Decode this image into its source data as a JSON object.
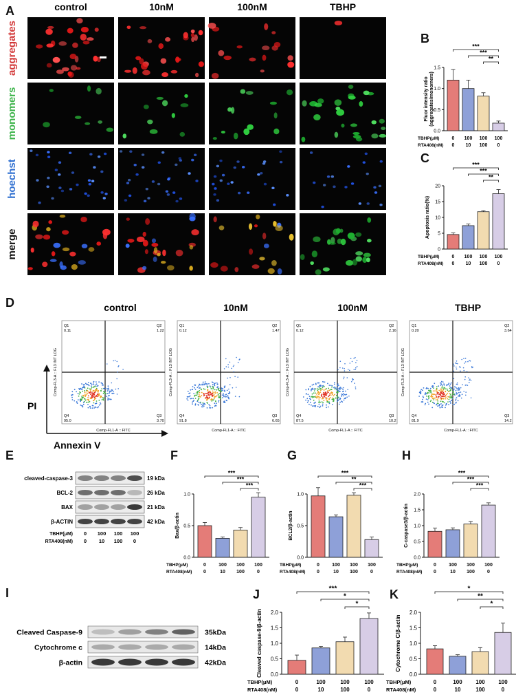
{
  "panel_letters": [
    "A",
    "B",
    "C",
    "D",
    "E",
    "F",
    "G",
    "H",
    "I",
    "J",
    "K"
  ],
  "micro": {
    "columns": [
      "control",
      "10nM",
      "100nM",
      "TBHP"
    ],
    "rows": [
      {
        "label": "aggregates",
        "color": "#d33a3a"
      },
      {
        "label": "monomers",
        "color": "#3cb34a"
      },
      {
        "label": "hoechst",
        "color": "#2f6fd0"
      },
      {
        "label": "merge",
        "color": "#111111"
      }
    ]
  },
  "flow": {
    "columns": [
      {
        "title": "control",
        "q1_label": "Q1",
        "q1": "0.11",
        "q2_label": "Q2",
        "q2": "1.22",
        "q3_label": "Q3",
        "q3": "3.70",
        "q4_label": "Q4",
        "q4": "95.0"
      },
      {
        "title": "10nM",
        "q1_label": "Q1",
        "q1": "0.12",
        "q2_label": "Q2",
        "q2": "1.47",
        "q3_label": "Q3",
        "q3": "6.65",
        "q4_label": "Q4",
        "q4": "91.8"
      },
      {
        "title": "100nM",
        "q1_label": "Q1",
        "q1": "0.12",
        "q2_label": "Q2",
        "q2": "2.16",
        "q3_label": "Q3",
        "q3": "10.2",
        "q4_label": "Q4",
        "q4": "87.5"
      },
      {
        "title": "TBHP",
        "q1_label": "Q1",
        "q1": "0.20",
        "q2_label": "Q2",
        "q2": "3.64",
        "q3_label": "Q3",
        "q3": "14.2",
        "q4_label": "Q4",
        "q4": "81.9"
      }
    ],
    "x_axis_label": "Comp-FL1-A :: FITC",
    "y_axis_label": "Comp-FL3-A :: FL3 INT LOG",
    "big_y": "PI",
    "big_x": "Annexin V"
  },
  "blot_e": {
    "rows": [
      {
        "label": "cleaved-caspase-3",
        "kda": "19 kDa"
      },
      {
        "label": "BCL-2",
        "kda": "26 kDa"
      },
      {
        "label": "BAX",
        "kda": "21 kDa"
      },
      {
        "label": "β-ACTIN",
        "kda": "42 kDa"
      }
    ],
    "tbhp_label": "TBHP(μM)",
    "tbhp": [
      "0",
      "100",
      "100",
      "100"
    ],
    "rta_label": "RTA408(nM)",
    "rta": [
      "0",
      "10",
      "100",
      "0"
    ]
  },
  "blot_i": {
    "rows": [
      {
        "label": "Cleaved Caspase-9",
        "kda": "35kDa"
      },
      {
        "label": "Cytochrome c",
        "kda": "14kDa"
      },
      {
        "label": "β-actin",
        "kda": "42kDa"
      }
    ]
  },
  "chart_data": [
    {
      "panel": "B",
      "type": "bar",
      "ylabel": "Fluor intensity ratio\n(aggregates/monomers)",
      "ylim": [
        0,
        1.5
      ],
      "yticks": [
        "0.0",
        "0.5",
        "1.0",
        "1.5"
      ],
      "values": [
        1.2,
        1.0,
        0.82,
        0.18
      ],
      "errors": [
        0.25,
        0.2,
        0.08,
        0.05
      ],
      "colors": [
        "#e47c78",
        "#8ea0d8",
        "#f2dbb0",
        "#d7cde6"
      ],
      "tbhp_label": "TBHP(μM)",
      "tbhp": [
        "0",
        "100",
        "100",
        "100"
      ],
      "rta_label": "RTA408(nM)",
      "rta": [
        "0",
        "10",
        "100",
        "0"
      ],
      "sig": [
        {
          "from": 0,
          "to": 3,
          "text": "***"
        },
        {
          "from": 1,
          "to": 3,
          "text": "***"
        },
        {
          "from": 2,
          "to": 3,
          "text": "**"
        }
      ]
    },
    {
      "panel": "C",
      "type": "bar",
      "ylabel": "Apoptosis ratio(%)",
      "ylim": [
        0,
        20
      ],
      "yticks": [
        "0",
        "5",
        "10",
        "15",
        "20"
      ],
      "values": [
        4.6,
        7.4,
        11.8,
        17.5
      ],
      "errors": [
        0.5,
        0.5,
        0.3,
        1.3
      ],
      "colors": [
        "#e47c78",
        "#8ea0d8",
        "#f2dbb0",
        "#d7cde6"
      ],
      "tbhp_label": "TBHP(μM)",
      "tbhp": [
        "0",
        "100",
        "100",
        "100"
      ],
      "rta_label": "RTA408(nM)",
      "rta": [
        "0",
        "10",
        "100",
        "0"
      ],
      "sig": [
        {
          "from": 0,
          "to": 3,
          "text": "***"
        },
        {
          "from": 1,
          "to": 3,
          "text": "***"
        },
        {
          "from": 2,
          "to": 3,
          "text": "**"
        }
      ]
    },
    {
      "panel": "F",
      "type": "bar",
      "ylabel": "Bax/β-actin",
      "ylim": [
        0,
        1.0
      ],
      "yticks": [
        "0.0",
        "0.5",
        "1.0"
      ],
      "values": [
        0.5,
        0.3,
        0.43,
        0.95
      ],
      "errors": [
        0.05,
        0.02,
        0.04,
        0.07
      ],
      "colors": [
        "#e47c78",
        "#8ea0d8",
        "#f2dbb0",
        "#d7cde6"
      ],
      "tbhp_label": "TBHP(μM)",
      "tbhp": [
        "0",
        "100",
        "100",
        "100"
      ],
      "rta_label": "RTA408(nM)",
      "rta": [
        "0",
        "10",
        "100",
        "0"
      ],
      "sig": [
        {
          "from": 0,
          "to": 3,
          "text": "***"
        },
        {
          "from": 1,
          "to": 3,
          "text": "***"
        },
        {
          "from": 2,
          "to": 3,
          "text": "***"
        }
      ]
    },
    {
      "panel": "G",
      "type": "bar",
      "ylabel": "BCL2/β-actin",
      "ylim": [
        0,
        1.0
      ],
      "yticks": [
        "0.0",
        "0.5",
        "1.0"
      ],
      "values": [
        0.97,
        0.64,
        0.98,
        0.28
      ],
      "errors": [
        0.13,
        0.03,
        0.04,
        0.04
      ],
      "colors": [
        "#e47c78",
        "#8ea0d8",
        "#f2dbb0",
        "#d7cde6"
      ],
      "tbhp_label": "TBHP(μM)",
      "tbhp": [
        "0",
        "100",
        "100",
        "100"
      ],
      "rta_label": "RTA408(nM)",
      "rta": [
        "0",
        "10",
        "100",
        "0"
      ],
      "sig": [
        {
          "from": 0,
          "to": 3,
          "text": "***"
        },
        {
          "from": 1,
          "to": 3,
          "text": "**"
        },
        {
          "from": 2,
          "to": 3,
          "text": "***"
        }
      ]
    },
    {
      "panel": "H",
      "type": "bar",
      "ylabel": "C-caspase3/β-actin",
      "ylim": [
        0,
        2.0
      ],
      "yticks": [
        "0.0",
        "0.5",
        "1.0",
        "1.5",
        "2.0"
      ],
      "values": [
        0.82,
        0.87,
        1.05,
        1.65
      ],
      "errors": [
        0.1,
        0.06,
        0.08,
        0.07
      ],
      "colors": [
        "#e47c78",
        "#8ea0d8",
        "#f2dbb0",
        "#d7cde6"
      ],
      "tbhp_label": "TBHP(μM)",
      "tbhp": [
        "0",
        "100",
        "100",
        "100"
      ],
      "rta_label": "RTA408(nM)",
      "rta": [
        "0",
        "10",
        "100",
        "0"
      ],
      "sig": [
        {
          "from": 0,
          "to": 3,
          "text": "***"
        },
        {
          "from": 1,
          "to": 3,
          "text": "***"
        },
        {
          "from": 2,
          "to": 3,
          "text": "***"
        }
      ]
    },
    {
      "panel": "J",
      "type": "bar",
      "ylabel": "Cleaved caspase-9/β-actin",
      "ylim": [
        0,
        2.0
      ],
      "yticks": [
        "0.0",
        "0.5",
        "1.0",
        "1.5",
        "2.0"
      ],
      "values": [
        0.45,
        0.85,
        1.05,
        1.8
      ],
      "errors": [
        0.17,
        0.05,
        0.15,
        0.18
      ],
      "colors": [
        "#e47c78",
        "#8ea0d8",
        "#f2dbb0",
        "#d7cde6"
      ],
      "tbhp_label": "TBHP(μM)",
      "tbhp": [
        "0",
        "100",
        "100",
        "100"
      ],
      "rta_label": "RTA408(nM)",
      "rta": [
        "0",
        "10",
        "100",
        "0"
      ],
      "sig": [
        {
          "from": 0,
          "to": 3,
          "text": "***"
        },
        {
          "from": 1,
          "to": 3,
          "text": "*"
        },
        {
          "from": 2,
          "to": 3,
          "text": "*"
        }
      ]
    },
    {
      "panel": "K",
      "type": "bar",
      "ylabel": "Cytochrome C/β-actin",
      "ylim": [
        0,
        2.0
      ],
      "yticks": [
        "0.0",
        "0.5",
        "1.0",
        "1.5",
        "2.0"
      ],
      "values": [
        0.82,
        0.58,
        0.73,
        1.35
      ],
      "errors": [
        0.1,
        0.05,
        0.13,
        0.3
      ],
      "colors": [
        "#e47c78",
        "#8ea0d8",
        "#f2dbb0",
        "#d7cde6"
      ],
      "tbhp_label": "TBHP(μM)",
      "tbhp": [
        "0",
        "100",
        "100",
        "100"
      ],
      "rta_label": "RTA408(nM)",
      "rta": [
        "0",
        "10",
        "100",
        "0"
      ],
      "sig": [
        {
          "from": 0,
          "to": 3,
          "text": "*"
        },
        {
          "from": 1,
          "to": 3,
          "text": "**"
        },
        {
          "from": 2,
          "to": 3,
          "text": "*"
        }
      ]
    }
  ]
}
